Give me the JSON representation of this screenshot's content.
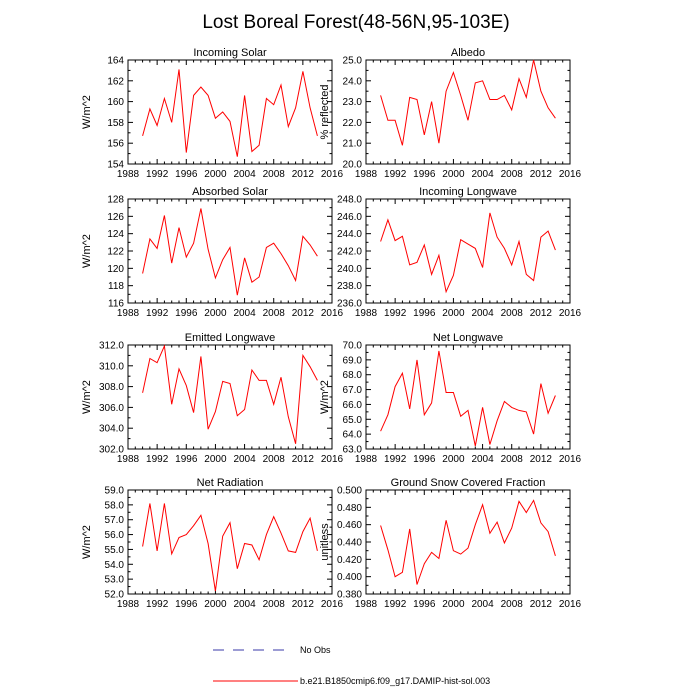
{
  "figure": {
    "title": "Lost Boreal Forest(48-56N,95-103E)",
    "line_color": "#ff0000",
    "obs_color": "#3a3aaa",
    "legend": [
      {
        "label": "No Obs",
        "style": "dashed"
      },
      {
        "label": "b.e21.B1850cmip6.f09_g17.DAMIP-hist-sol.003",
        "style": "solid"
      }
    ]
  },
  "chart_data": [
    {
      "type": "line",
      "title": "Incoming Solar",
      "xlabel": "",
      "ylabel": "W/m^2",
      "xlim": [
        1988,
        2016
      ],
      "ylim": [
        154,
        164
      ],
      "xticks": [
        "1988",
        "1992",
        "1996",
        "2000",
        "2004",
        "2008",
        "2012",
        "2016"
      ],
      "yticks": [
        "154",
        "156",
        "158",
        "160",
        "162",
        "164"
      ],
      "x": [
        1990,
        1991,
        1992,
        1993,
        1994,
        1995,
        1996,
        1997,
        1998,
        1999,
        2000,
        2001,
        2002,
        2003,
        2004,
        2005,
        2006,
        2007,
        2008,
        2009,
        2010,
        2011,
        2012,
        2013,
        2014
      ],
      "series": [
        {
          "values": [
            156.7,
            159.3,
            157.7,
            160.3,
            158.0,
            163.1,
            155.1,
            160.6,
            161.4,
            160.6,
            158.4,
            159.0,
            158.1,
            154.7,
            160.6,
            155.2,
            155.8,
            160.3,
            159.7,
            161.6,
            157.6,
            159.4,
            162.9,
            159.4,
            156.7
          ]
        }
      ]
    },
    {
      "type": "line",
      "title": "Albedo",
      "xlabel": "",
      "ylabel": "% reflected",
      "xlim": [
        1988,
        2016
      ],
      "ylim": [
        20,
        25
      ],
      "xticks": [
        "1988",
        "1992",
        "1996",
        "2000",
        "2004",
        "2008",
        "2012",
        "2016"
      ],
      "yticks": [
        "20.0",
        "21.0",
        "22.0",
        "23.0",
        "24.0",
        "25.0"
      ],
      "x": [
        1990,
        1991,
        1992,
        1993,
        1994,
        1995,
        1996,
        1997,
        1998,
        1999,
        2000,
        2001,
        2002,
        2003,
        2004,
        2005,
        2006,
        2007,
        2008,
        2009,
        2010,
        2011,
        2012,
        2013,
        2014
      ],
      "series": [
        {
          "values": [
            23.3,
            22.1,
            22.1,
            20.9,
            23.2,
            23.1,
            21.4,
            23.0,
            21.0,
            23.5,
            24.4,
            23.3,
            22.1,
            23.9,
            24.0,
            23.1,
            23.1,
            23.3,
            22.6,
            24.1,
            23.2,
            25.0,
            23.5,
            22.7,
            22.2
          ]
        }
      ]
    },
    {
      "type": "line",
      "title": "Absorbed Solar",
      "xlabel": "",
      "ylabel": "W/m^2",
      "xlim": [
        1988,
        2016
      ],
      "ylim": [
        116,
        128
      ],
      "xticks": [
        "1988",
        "1992",
        "1996",
        "2000",
        "2004",
        "2008",
        "2012",
        "2016"
      ],
      "yticks": [
        "116",
        "118",
        "120",
        "122",
        "124",
        "126",
        "128"
      ],
      "x": [
        1990,
        1991,
        1992,
        1993,
        1994,
        1995,
        1996,
        1997,
        1998,
        1999,
        2000,
        2001,
        2002,
        2003,
        2004,
        2005,
        2006,
        2007,
        2008,
        2009,
        2010,
        2011,
        2012,
        2013,
        2014
      ],
      "series": [
        {
          "values": [
            119.4,
            123.4,
            122.3,
            126.1,
            120.6,
            124.7,
            121.3,
            122.9,
            126.9,
            122.2,
            118.9,
            121.0,
            122.4,
            116.9,
            121.2,
            118.4,
            119.0,
            122.4,
            122.9,
            121.7,
            120.3,
            118.6,
            123.7,
            122.7,
            121.4
          ]
        }
      ]
    },
    {
      "type": "line",
      "title": "Incoming Longwave",
      "xlabel": "",
      "ylabel": "",
      "xlim": [
        1988,
        2016
      ],
      "ylim": [
        236,
        248
      ],
      "xticks": [
        "1988",
        "1992",
        "1996",
        "2000",
        "2004",
        "2008",
        "2012",
        "2016"
      ],
      "yticks": [
        "236.0",
        "238.0",
        "240.0",
        "242.0",
        "244.0",
        "246.0",
        "248.0"
      ],
      "x": [
        1990,
        1991,
        1992,
        1993,
        1994,
        1995,
        1996,
        1997,
        1998,
        1999,
        2000,
        2001,
        2002,
        2003,
        2004,
        2005,
        2006,
        2007,
        2008,
        2009,
        2010,
        2011,
        2012,
        2013,
        2014
      ],
      "series": [
        {
          "values": [
            243.1,
            245.6,
            243.2,
            243.7,
            240.4,
            240.7,
            242.7,
            239.3,
            241.5,
            237.3,
            239.2,
            243.3,
            242.8,
            242.3,
            240.1,
            246.4,
            243.6,
            242.3,
            240.4,
            243.1,
            239.3,
            238.6,
            243.6,
            244.3,
            242.1
          ]
        }
      ]
    },
    {
      "type": "line",
      "title": "Emitted Longwave",
      "xlabel": "",
      "ylabel": "W/m^2",
      "xlim": [
        1988,
        2016
      ],
      "ylim": [
        302,
        312
      ],
      "xticks": [
        "1988",
        "1992",
        "1996",
        "2000",
        "2004",
        "2008",
        "2012",
        "2016"
      ],
      "yticks": [
        "302.0",
        "304.0",
        "306.0",
        "308.0",
        "310.0",
        "312.0"
      ],
      "x": [
        1990,
        1991,
        1992,
        1993,
        1994,
        1995,
        1996,
        1997,
        1998,
        1999,
        2000,
        2001,
        2002,
        2003,
        2004,
        2005,
        2006,
        2007,
        2008,
        2009,
        2010,
        2011,
        2012,
        2013,
        2014
      ],
      "series": [
        {
          "values": [
            307.4,
            310.7,
            310.3,
            311.9,
            306.3,
            309.7,
            308.1,
            305.5,
            310.9,
            303.9,
            305.6,
            308.5,
            308.3,
            305.2,
            305.8,
            309.6,
            308.6,
            308.6,
            306.3,
            308.9,
            305.1,
            302.5,
            311.0,
            309.9,
            308.6
          ]
        }
      ]
    },
    {
      "type": "line",
      "title": "Net Longwave",
      "xlabel": "",
      "ylabel": "W/m^2",
      "xlim": [
        1988,
        2016
      ],
      "ylim": [
        63,
        70
      ],
      "xticks": [
        "1988",
        "1992",
        "1996",
        "2000",
        "2004",
        "2008",
        "2012",
        "2016"
      ],
      "yticks": [
        "63.0",
        "64.0",
        "65.0",
        "66.0",
        "67.0",
        "68.0",
        "69.0",
        "70.0"
      ],
      "x": [
        1990,
        1991,
        1992,
        1993,
        1994,
        1995,
        1996,
        1997,
        1998,
        1999,
        2000,
        2001,
        2002,
        2003,
        2004,
        2005,
        2006,
        2007,
        2008,
        2009,
        2010,
        2011,
        2012,
        2013,
        2014
      ],
      "series": [
        {
          "values": [
            64.2,
            65.3,
            67.2,
            68.1,
            65.7,
            69.0,
            65.3,
            66.1,
            69.6,
            66.8,
            66.8,
            65.2,
            65.6,
            63.2,
            65.8,
            63.3,
            64.9,
            66.2,
            65.8,
            65.6,
            65.5,
            64.0,
            67.4,
            65.4,
            66.6
          ]
        }
      ]
    },
    {
      "type": "line",
      "title": "Net Radiation",
      "xlabel": "",
      "ylabel": "W/m^2",
      "xlim": [
        1988,
        2016
      ],
      "ylim": [
        52,
        59
      ],
      "xticks": [
        "1988",
        "1992",
        "1996",
        "2000",
        "2004",
        "2008",
        "2012",
        "2016"
      ],
      "yticks": [
        "52.0",
        "53.0",
        "54.0",
        "55.0",
        "56.0",
        "57.0",
        "58.0",
        "59.0"
      ],
      "x": [
        1990,
        1991,
        1992,
        1993,
        1994,
        1995,
        1996,
        1997,
        1998,
        1999,
        2000,
        2001,
        2002,
        2003,
        2004,
        2005,
        2006,
        2007,
        2008,
        2009,
        2010,
        2011,
        2012,
        2013,
        2014
      ],
      "series": [
        {
          "values": [
            55.2,
            58.1,
            54.9,
            58.1,
            54.7,
            55.8,
            56.0,
            56.6,
            57.3,
            55.4,
            52.2,
            55.9,
            56.8,
            53.7,
            55.4,
            55.3,
            54.3,
            56.0,
            57.2,
            56.1,
            54.9,
            54.8,
            56.2,
            57.1,
            54.9
          ]
        }
      ]
    },
    {
      "type": "line",
      "title": "Ground Snow Covered Fraction",
      "xlabel": "",
      "ylabel": "unitless",
      "xlim": [
        1988,
        2016
      ],
      "ylim": [
        0.38,
        0.5
      ],
      "xticks": [
        "1988",
        "1992",
        "1996",
        "2000",
        "2004",
        "2008",
        "2012",
        "2016"
      ],
      "yticks": [
        "0.380",
        "0.400",
        "0.420",
        "0.440",
        "0.460",
        "0.480",
        "0.500"
      ],
      "x": [
        1990,
        1991,
        1992,
        1993,
        1994,
        1995,
        1996,
        1997,
        1998,
        1999,
        2000,
        2001,
        2002,
        2003,
        2004,
        2005,
        2006,
        2007,
        2008,
        2009,
        2010,
        2011,
        2012,
        2013,
        2014
      ],
      "series": [
        {
          "values": [
            0.459,
            0.431,
            0.4,
            0.405,
            0.455,
            0.391,
            0.415,
            0.428,
            0.421,
            0.465,
            0.43,
            0.426,
            0.433,
            0.46,
            0.483,
            0.45,
            0.463,
            0.439,
            0.456,
            0.487,
            0.474,
            0.488,
            0.462,
            0.452,
            0.424
          ]
        }
      ]
    }
  ]
}
